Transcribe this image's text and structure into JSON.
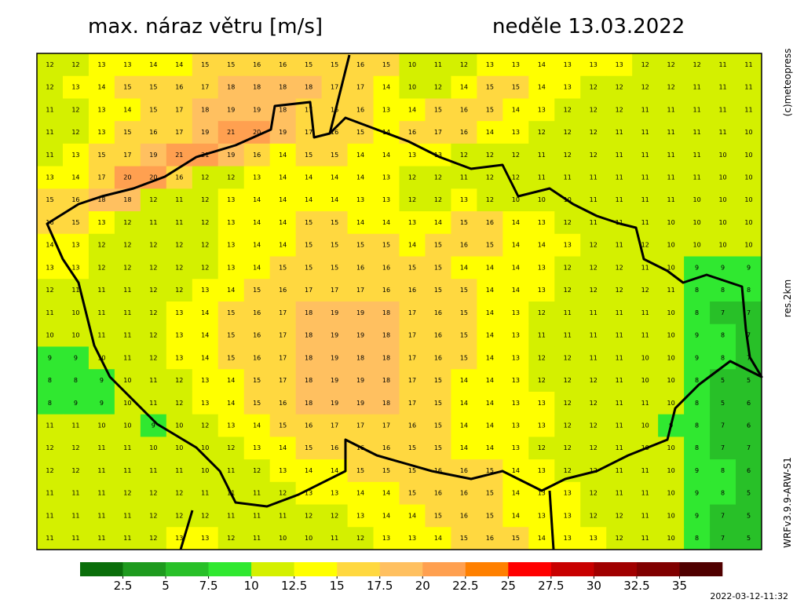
{
  "header": {
    "title": "max. náraz větru [m/s]",
    "date": "neděle 13.03.2022"
  },
  "side_labels": {
    "copyright": "(c)meteopress",
    "resolution": "res.2km",
    "model": "WRFv3.9.9-ARW-S1"
  },
  "timestamp": "2022-03-12-11:32",
  "map": {
    "grid": [
      [
        12,
        12,
        13,
        13,
        14,
        14,
        15,
        15,
        16,
        16,
        15,
        15,
        16,
        15,
        10,
        11,
        12,
        13,
        13,
        14,
        13,
        13,
        13,
        12,
        12,
        12,
        11,
        11
      ],
      [
        12,
        13,
        14,
        15,
        15,
        16,
        17,
        18,
        18,
        18,
        18,
        17,
        17,
        14,
        10,
        12,
        14,
        15,
        15,
        14,
        13,
        12,
        12,
        12,
        12,
        11,
        11,
        11
      ],
      [
        11,
        12,
        13,
        14,
        15,
        17,
        18,
        19,
        19,
        18,
        17,
        16,
        16,
        13,
        14,
        15,
        16,
        15,
        14,
        13,
        12,
        12,
        12,
        11,
        11,
        11,
        11,
        11
      ],
      [
        11,
        12,
        13,
        15,
        16,
        17,
        19,
        21,
        20,
        19,
        17,
        16,
        15,
        14,
        16,
        17,
        16,
        14,
        13,
        12,
        12,
        12,
        11,
        11,
        11,
        11,
        11,
        10
      ],
      [
        11,
        13,
        15,
        17,
        19,
        21,
        21,
        19,
        16,
        14,
        15,
        15,
        14,
        14,
        13,
        13,
        12,
        12,
        12,
        11,
        12,
        12,
        11,
        11,
        11,
        11,
        10,
        10
      ],
      [
        13,
        14,
        17,
        20,
        20,
        16,
        12,
        12,
        13,
        14,
        14,
        14,
        14,
        13,
        12,
        12,
        11,
        12,
        12,
        11,
        11,
        11,
        11,
        11,
        11,
        11,
        10,
        10
      ],
      [
        15,
        16,
        18,
        18,
        12,
        11,
        12,
        13,
        14,
        14,
        14,
        14,
        13,
        13,
        12,
        12,
        13,
        12,
        10,
        10,
        10,
        11,
        11,
        11,
        11,
        10,
        10,
        10
      ],
      [
        16,
        15,
        13,
        12,
        11,
        11,
        12,
        13,
        14,
        14,
        15,
        15,
        14,
        14,
        13,
        14,
        15,
        16,
        14,
        13,
        12,
        11,
        11,
        11,
        10,
        10,
        10,
        10
      ],
      [
        14,
        13,
        12,
        12,
        12,
        12,
        12,
        13,
        14,
        14,
        15,
        15,
        15,
        15,
        14,
        15,
        16,
        15,
        14,
        14,
        13,
        12,
        11,
        12,
        10,
        10,
        10,
        10
      ],
      [
        13,
        13,
        12,
        12,
        12,
        12,
        12,
        13,
        14,
        15,
        15,
        15,
        16,
        16,
        15,
        15,
        14,
        14,
        14,
        13,
        12,
        12,
        12,
        11,
        10,
        9,
        9,
        9
      ],
      [
        12,
        11,
        11,
        11,
        12,
        12,
        13,
        14,
        15,
        16,
        17,
        17,
        17,
        16,
        16,
        15,
        15,
        14,
        14,
        13,
        12,
        12,
        12,
        12,
        11,
        8,
        8,
        8
      ],
      [
        11,
        10,
        11,
        11,
        12,
        13,
        14,
        15,
        16,
        17,
        18,
        19,
        19,
        18,
        17,
        16,
        15,
        14,
        13,
        12,
        11,
        11,
        11,
        11,
        10,
        8,
        7,
        7
      ],
      [
        10,
        10,
        11,
        11,
        12,
        13,
        14,
        15,
        16,
        17,
        18,
        19,
        19,
        18,
        17,
        16,
        15,
        14,
        13,
        11,
        11,
        11,
        11,
        11,
        10,
        9,
        8,
        7
      ],
      [
        9,
        9,
        10,
        11,
        12,
        13,
        14,
        15,
        16,
        17,
        18,
        19,
        18,
        18,
        17,
        16,
        15,
        14,
        13,
        12,
        12,
        11,
        11,
        10,
        10,
        9,
        8,
        7
      ],
      [
        8,
        8,
        9,
        10,
        11,
        12,
        13,
        14,
        15,
        17,
        18,
        19,
        19,
        18,
        17,
        15,
        14,
        14,
        13,
        12,
        12,
        12,
        11,
        10,
        10,
        8,
        5,
        5
      ],
      [
        8,
        9,
        9,
        10,
        11,
        12,
        13,
        14,
        15,
        16,
        18,
        19,
        19,
        18,
        17,
        15,
        14,
        14,
        13,
        13,
        12,
        12,
        11,
        11,
        10,
        8,
        5,
        6
      ],
      [
        11,
        11,
        10,
        10,
        9,
        10,
        12,
        13,
        14,
        15,
        16,
        17,
        17,
        17,
        16,
        15,
        14,
        14,
        13,
        13,
        12,
        12,
        11,
        10,
        9,
        8,
        7,
        6
      ],
      [
        12,
        12,
        11,
        11,
        10,
        10,
        10,
        12,
        13,
        14,
        15,
        16,
        16,
        16,
        15,
        15,
        14,
        14,
        13,
        12,
        12,
        12,
        11,
        10,
        10,
        8,
        7,
        7
      ],
      [
        12,
        12,
        11,
        11,
        11,
        11,
        10,
        11,
        12,
        13,
        14,
        14,
        15,
        15,
        15,
        16,
        16,
        15,
        14,
        13,
        12,
        12,
        11,
        11,
        10,
        9,
        8,
        6
      ],
      [
        11,
        11,
        11,
        12,
        12,
        12,
        11,
        11,
        11,
        12,
        13,
        13,
        14,
        14,
        15,
        16,
        16,
        15,
        14,
        13,
        13,
        12,
        11,
        11,
        10,
        9,
        8,
        5
      ],
      [
        11,
        11,
        11,
        11,
        12,
        12,
        12,
        11,
        11,
        11,
        12,
        12,
        13,
        14,
        14,
        15,
        16,
        15,
        14,
        13,
        13,
        12,
        12,
        11,
        10,
        9,
        7,
        5
      ],
      [
        11,
        11,
        11,
        11,
        12,
        13,
        13,
        12,
        11,
        10,
        10,
        11,
        12,
        13,
        13,
        14,
        15,
        16,
        15,
        14,
        13,
        13,
        12,
        11,
        10,
        8,
        7,
        5
      ]
    ]
  },
  "legend": {
    "step": 2.5,
    "colors": [
      "#0a6e0a",
      "#1e9a1e",
      "#28c028",
      "#30e830",
      "#d4f000",
      "#ffff00",
      "#ffd840",
      "#ffc060",
      "#ffa050",
      "#ff8000",
      "#ff0000",
      "#c80000",
      "#a00000",
      "#800000",
      "#500000"
    ],
    "ticks": [
      2.5,
      5,
      7.5,
      10,
      12.5,
      15,
      17.5,
      20,
      22.5,
      25,
      27.5,
      30,
      32.5,
      35
    ]
  }
}
